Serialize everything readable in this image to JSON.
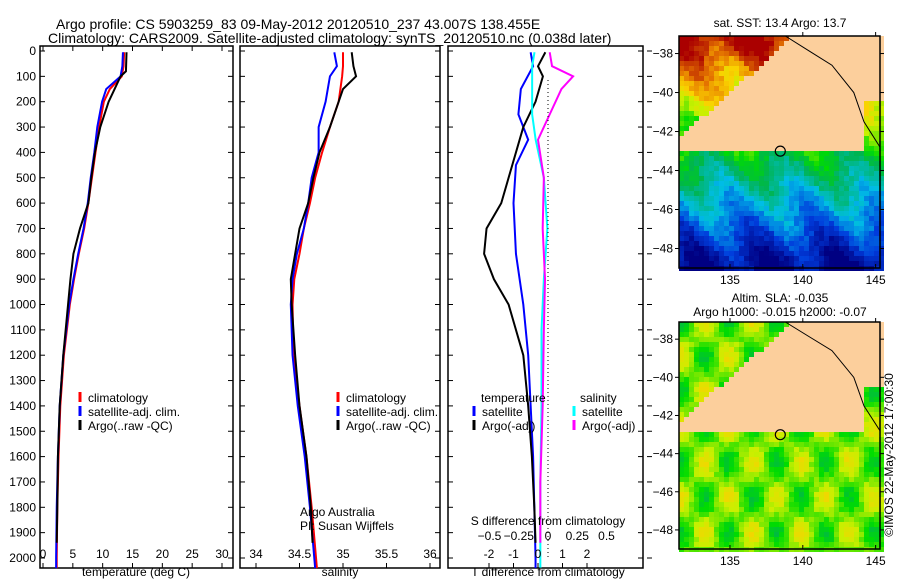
{
  "titles": {
    "line1": "Argo profile: CS 5903259_83 09-May-2012 20120510_237 43.007S 138.455E",
    "line2": "Climatology: CARS2009. Satellite-adjusted climatology: synTS_20120510.nc (0.038d later)"
  },
  "colors": {
    "clim": "#ff0000",
    "sat": "#0000ff",
    "argo": "#000000",
    "sat_s": "#00ffff",
    "argo_s": "#ff00ff"
  },
  "chart_data": [
    {
      "type": "line",
      "name": "temperature",
      "xlabel": "temperature (deg C)",
      "xlim": [
        -1,
        31
      ],
      "ylim": [
        2050,
        0
      ],
      "xticks": [
        0,
        5,
        10,
        15,
        20,
        25,
        30
      ],
      "yticks": [
        0,
        100,
        200,
        300,
        400,
        500,
        600,
        700,
        800,
        900,
        1000,
        1100,
        1200,
        1300,
        1400,
        1500,
        1600,
        1700,
        1800,
        1900,
        2000
      ],
      "legend": [
        "climatology",
        "satellite-adj. clim.",
        "Argo(..raw -QC)"
      ],
      "series": [
        {
          "name": "climatology",
          "color": "#ff0000",
          "points": [
            [
              5,
              13.6
            ],
            [
              60,
              13.5
            ],
            [
              100,
              13.2
            ],
            [
              150,
              11.2
            ],
            [
              200,
              10.2
            ],
            [
              300,
              9.4
            ],
            [
              400,
              8.8
            ],
            [
              500,
              8.2
            ],
            [
              600,
              7.6
            ],
            [
              700,
              6.9
            ],
            [
              800,
              6.0
            ],
            [
              900,
              5.2
            ],
            [
              1000,
              4.5
            ],
            [
              1200,
              3.5
            ],
            [
              1400,
              2.9
            ],
            [
              1600,
              2.6
            ],
            [
              1800,
              2.4
            ],
            [
              2000,
              2.3
            ],
            [
              2040,
              2.3
            ]
          ]
        },
        {
          "name": "satellite-adj. clim.",
          "color": "#0000ff",
          "points": [
            [
              5,
              13.4
            ],
            [
              60,
              13.3
            ],
            [
              100,
              13.0
            ],
            [
              150,
              10.6
            ],
            [
              200,
              9.9
            ],
            [
              300,
              9.1
            ],
            [
              400,
              8.6
            ],
            [
              500,
              8.0
            ],
            [
              600,
              7.5
            ],
            [
              700,
              6.8
            ],
            [
              800,
              5.9
            ],
            [
              900,
              5.1
            ],
            [
              1000,
              4.4
            ],
            [
              1200,
              3.4
            ],
            [
              1400,
              2.8
            ],
            [
              1600,
              2.5
            ],
            [
              1800,
              2.3
            ],
            [
              2000,
              2.2
            ],
            [
              2040,
              2.2
            ]
          ]
        },
        {
          "name": "Argo(..raw -QC)",
          "color": "#000000",
          "points": [
            [
              5,
              14.0
            ],
            [
              80,
              13.9
            ],
            [
              100,
              13.0
            ],
            [
              150,
              12.0
            ],
            [
              200,
              11.0
            ],
            [
              300,
              9.6
            ],
            [
              400,
              8.7
            ],
            [
              500,
              8.1
            ],
            [
              600,
              7.6
            ],
            [
              700,
              6.2
            ],
            [
              800,
              5.1
            ],
            [
              900,
              4.6
            ],
            [
              1000,
              4.2
            ],
            [
              1200,
              3.4
            ],
            [
              1400,
              2.8
            ],
            [
              1600,
              2.5
            ],
            [
              1800,
              2.4
            ],
            [
              1940,
              2.3
            ]
          ]
        }
      ]
    },
    {
      "type": "line",
      "name": "salinity",
      "xlabel": "salinity",
      "xlim": [
        33.8,
        36.1
      ],
      "ylim": [
        2050,
        0
      ],
      "xticks": [
        34,
        34.5,
        35,
        35.5,
        36
      ],
      "legend": [
        "climatology",
        "satellite-adj. clim.",
        "Argo(..raw -QC)"
      ],
      "annotation": [
        "Argo Australia",
        "PI: Susan Wijffels"
      ],
      "series": [
        {
          "name": "climatology",
          "color": "#ff0000",
          "points": [
            [
              5,
              35.0
            ],
            [
              60,
              35.0
            ],
            [
              100,
              34.99
            ],
            [
              200,
              34.95
            ],
            [
              300,
              34.85
            ],
            [
              400,
              34.76
            ],
            [
              500,
              34.68
            ],
            [
              600,
              34.62
            ],
            [
              700,
              34.55
            ],
            [
              800,
              34.5
            ],
            [
              900,
              34.44
            ],
            [
              1000,
              34.42
            ],
            [
              1200,
              34.43
            ],
            [
              1400,
              34.5
            ],
            [
              1600,
              34.58
            ],
            [
              1800,
              34.64
            ],
            [
              2000,
              34.69
            ],
            [
              2040,
              34.7
            ]
          ]
        },
        {
          "name": "satellite-adj. clim.",
          "color": "#0000ff",
          "points": [
            [
              5,
              34.9
            ],
            [
              60,
              34.93
            ],
            [
              100,
              34.85
            ],
            [
              200,
              34.8
            ],
            [
              300,
              34.72
            ],
            [
              400,
              34.72
            ],
            [
              500,
              34.64
            ],
            [
              600,
              34.6
            ],
            [
              700,
              34.55
            ],
            [
              800,
              34.47
            ],
            [
              900,
              34.42
            ],
            [
              1000,
              34.4
            ],
            [
              1200,
              34.42
            ],
            [
              1400,
              34.48
            ],
            [
              1600,
              34.56
            ],
            [
              1800,
              34.62
            ],
            [
              2000,
              34.67
            ],
            [
              2040,
              34.68
            ]
          ]
        },
        {
          "name": "Argo(..raw -QC)",
          "color": "#000000",
          "points": [
            [
              5,
              35.1
            ],
            [
              60,
              35.12
            ],
            [
              100,
              35.15
            ],
            [
              150,
              35.0
            ],
            [
              200,
              34.95
            ],
            [
              300,
              34.85
            ],
            [
              400,
              34.73
            ],
            [
              500,
              34.66
            ],
            [
              600,
              34.6
            ],
            [
              700,
              34.5
            ],
            [
              800,
              34.45
            ],
            [
              900,
              34.4
            ],
            [
              1000,
              34.41
            ],
            [
              1200,
              34.45
            ],
            [
              1400,
              34.5
            ],
            [
              1600,
              34.58
            ],
            [
              1800,
              34.63
            ],
            [
              1940,
              34.65
            ]
          ]
        }
      ]
    },
    {
      "type": "line",
      "name": "differences",
      "xlabel": "T difference from climatology",
      "xlabel2": "S difference from climatology",
      "xlim": [
        -2.95,
        2.95
      ],
      "xticks": [
        -2,
        -1,
        0,
        1,
        2
      ],
      "xticks2": [
        -0.5,
        -0.25,
        0,
        0.25,
        0.5
      ],
      "legend": {
        "temperature": "temperature",
        "salinity": "salinity",
        "sat": "satellite",
        "argo": "Argo(-adj)"
      },
      "series": [
        {
          "name": "T satellite",
          "color": "#0000ff",
          "points": [
            [
              5,
              -0.3
            ],
            [
              60,
              -0.2
            ],
            [
              150,
              -0.7
            ],
            [
              250,
              -0.8
            ],
            [
              350,
              -0.4
            ],
            [
              450,
              -0.9
            ],
            [
              600,
              -1.0
            ],
            [
              800,
              -0.9
            ],
            [
              1000,
              -0.6
            ],
            [
              1200,
              -0.4
            ],
            [
              1400,
              -0.3
            ],
            [
              1600,
              -0.2
            ],
            [
              1800,
              -0.15
            ],
            [
              2000,
              -0.1
            ],
            [
              2040,
              -0.1
            ]
          ]
        },
        {
          "name": "T Argo(-adj)",
          "color": "#000000",
          "points": [
            [
              5,
              0.3
            ],
            [
              60,
              0.0
            ],
            [
              100,
              0.2
            ],
            [
              200,
              -0.1
            ],
            [
              300,
              -0.6
            ],
            [
              500,
              -1.2
            ],
            [
              600,
              -1.5
            ],
            [
              700,
              -2.1
            ],
            [
              800,
              -2.2
            ],
            [
              900,
              -1.8
            ],
            [
              1000,
              -1.2
            ],
            [
              1200,
              -0.6
            ],
            [
              1400,
              -0.4
            ],
            [
              1600,
              -0.25
            ],
            [
              1800,
              -0.15
            ],
            [
              1940,
              -0.1
            ]
          ]
        },
        {
          "name": "S satellite",
          "color": "#00ffff",
          "points": [
            [
              5,
              -0.03
            ],
            [
              60,
              -0.05
            ],
            [
              150,
              -0.05
            ],
            [
              250,
              -0.05
            ],
            [
              350,
              -0.02
            ],
            [
              500,
              0.05
            ],
            [
              700,
              0.08
            ],
            [
              900,
              0.05
            ],
            [
              1100,
              0.03
            ],
            [
              1400,
              0.03
            ],
            [
              1700,
              0.02
            ],
            [
              2000,
              0.02
            ],
            [
              2040,
              0.02
            ]
          ]
        },
        {
          "name": "S Argo(-adj)",
          "color": "#ff00ff",
          "points": [
            [
              5,
              0.1
            ],
            [
              60,
              0.12
            ],
            [
              100,
              0.3
            ],
            [
              150,
              0.2
            ],
            [
              250,
              0.1
            ],
            [
              350,
              0.0
            ],
            [
              500,
              0.05
            ],
            [
              700,
              0.04
            ],
            [
              900,
              0.06
            ],
            [
              1100,
              0.05
            ],
            [
              1400,
              0.04
            ],
            [
              1700,
              0.02
            ],
            [
              1940,
              0.02
            ]
          ]
        }
      ]
    },
    {
      "type": "heatmap",
      "name": "sst-map",
      "title": "sat. SST: 13.4  Argo: 13.7",
      "xticks": [
        135,
        140,
        145
      ],
      "yticks": [
        -38,
        -40,
        -42,
        -44,
        -46,
        -48
      ],
      "xlim": [
        131.5,
        145.3
      ],
      "ylim": [
        -49,
        -37.1
      ],
      "marker": [
        138.455,
        -43.007
      ]
    },
    {
      "type": "heatmap",
      "name": "sla-map",
      "title1": "Altim. SLA: -0.035",
      "title2": "Argo h1000: -0.015  h2000: -0.07",
      "xticks": [
        135,
        140,
        145
      ],
      "yticks": [
        -38,
        -40,
        -42,
        -44,
        -46,
        -48
      ],
      "xlim": [
        131.5,
        145.3
      ],
      "ylim": [
        -49,
        -37.1
      ],
      "marker": [
        138.455,
        -43.007
      ]
    }
  ],
  "credit": "©IMOS 22-May-2012 17:00:30"
}
